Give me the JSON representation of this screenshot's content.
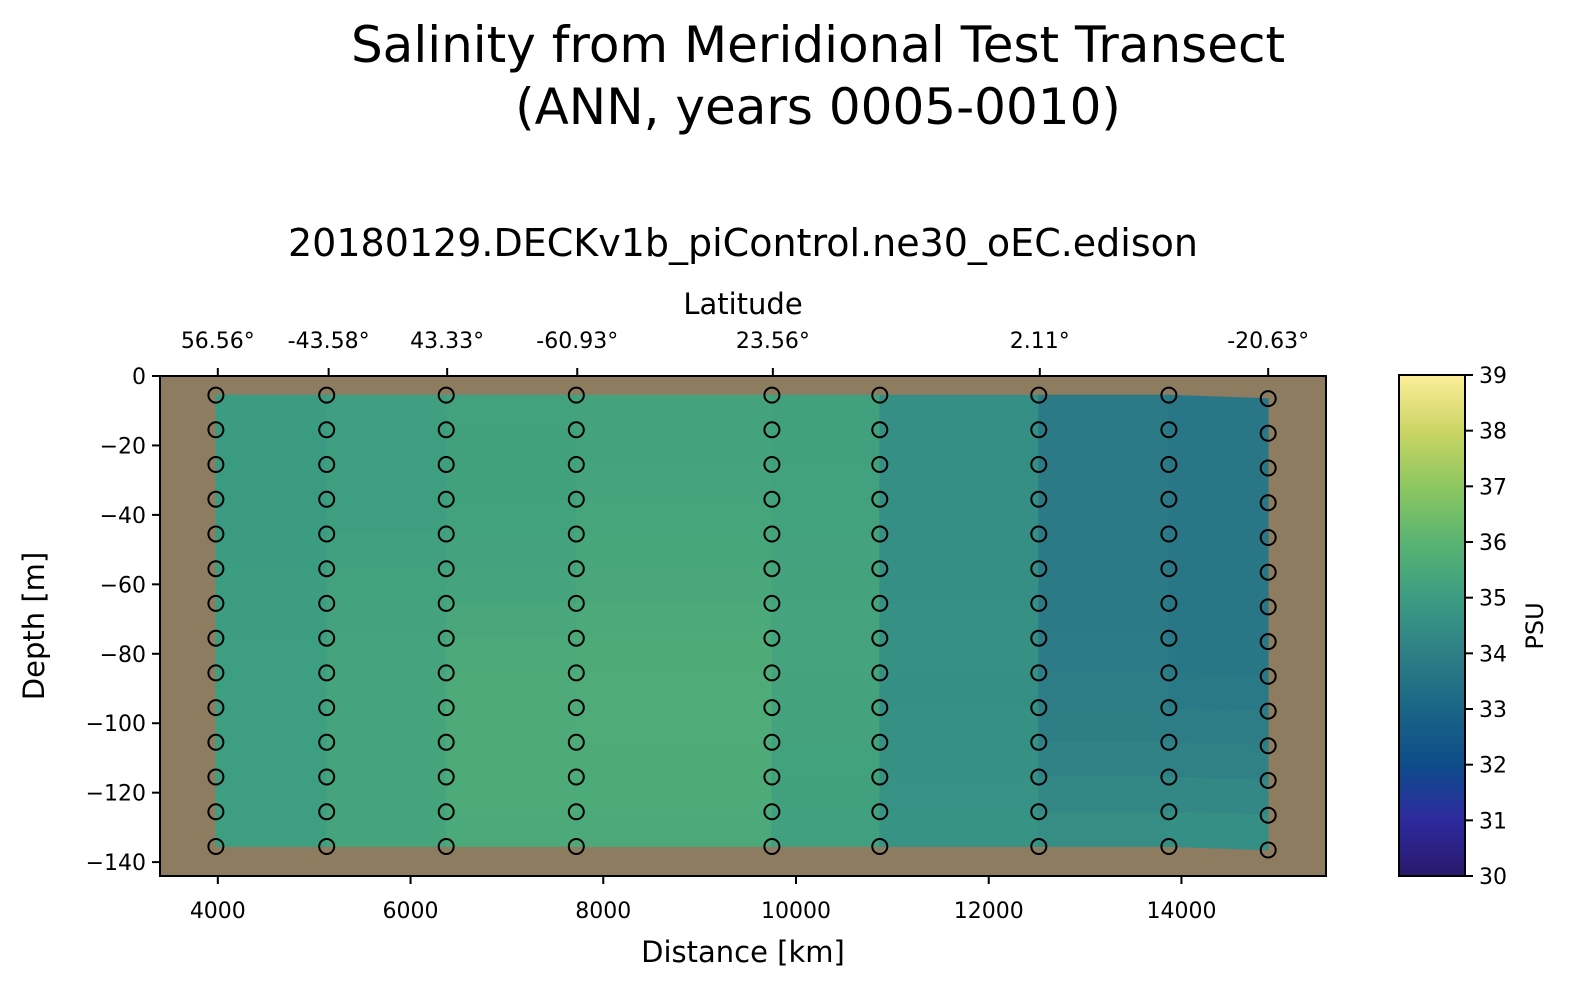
{
  "chart_data": {
    "type": "heatmap",
    "title_line1": "Salinity from Meridional Test Transect",
    "title_line2": "(ANN, years 0005-0010)",
    "subtitle": "20180129.DECKv1b_piControl.ne30_oEC.edison",
    "xlabel": "Distance [km]",
    "ylabel": "Depth [m]",
    "top_axis_label": "Latitude",
    "xlim": [
      3400,
      15500
    ],
    "ylim": [
      -144,
      0
    ],
    "x_ticks": [
      4000,
      6000,
      8000,
      10000,
      12000,
      14000
    ],
    "y_ticks": [
      0,
      -20,
      -40,
      -60,
      -80,
      -100,
      -120,
      -140
    ],
    "top_ticks": [
      {
        "x": 4000,
        "label": "56.56°"
      },
      {
        "x": 5150,
        "label": "-43.58°"
      },
      {
        "x": 6380,
        "label": "43.33°"
      },
      {
        "x": 7730,
        "label": "-60.93°"
      },
      {
        "x": 9760,
        "label": "23.56°"
      },
      {
        "x": 12530,
        "label": "2.11°"
      },
      {
        "x": 14900,
        "label": "-20.63°"
      }
    ],
    "station_distances_km": [
      3980,
      5130,
      6370,
      7720,
      9750,
      10870,
      12520,
      13870,
      14900
    ],
    "station_latitudes": [
      "56.56°",
      "-43.58°",
      "43.33°",
      "-60.93°",
      "23.56°",
      "",
      "2.11°",
      "",
      "-20.63°"
    ],
    "depths_m": [
      -5.5,
      -15.5,
      -25.5,
      -35.5,
      -45.5,
      -55.5,
      -65.5,
      -75.5,
      -85.5,
      -95.5,
      -105.5,
      -115.5,
      -125.5,
      -135.5
    ],
    "last_station_depth_offset_m": -1.0,
    "salinity_psu": [
      [
        34.9,
        34.9,
        34.8,
        34.8,
        34.8,
        34.9,
        34.9,
        34.9,
        35.0,
        35.0,
        35.0,
        35.0,
        35.0,
        35.0
      ],
      [
        35.1,
        35.1,
        35.1,
        35.1,
        35.1,
        35.2,
        35.2,
        35.2,
        35.2,
        35.2,
        35.2,
        35.2,
        35.2,
        35.2
      ],
      [
        35.2,
        35.1,
        35.1,
        35.1,
        35.1,
        35.2,
        35.3,
        35.4,
        35.5,
        35.5,
        35.5,
        35.5,
        35.5,
        35.5
      ],
      [
        35.3,
        35.3,
        35.3,
        35.3,
        35.4,
        35.4,
        35.5,
        35.6,
        35.7,
        35.7,
        35.7,
        35.7,
        35.6,
        35.6
      ],
      [
        35.3,
        35.3,
        35.3,
        35.4,
        35.4,
        35.5,
        35.5,
        35.6,
        35.6,
        35.6,
        35.6,
        35.5,
        35.5,
        35.4
      ],
      [
        35.1,
        35.1,
        35.1,
        35.1,
        35.1,
        35.1,
        35.1,
        35.1,
        35.0,
        35.0,
        35.0,
        34.9,
        34.9,
        34.9
      ],
      [
        34.0,
        34.0,
        34.0,
        34.0,
        34.0,
        34.0,
        34.0,
        34.1,
        34.1,
        34.1,
        34.2,
        34.3,
        34.4,
        34.5
      ],
      [
        33.6,
        33.6,
        33.6,
        33.6,
        33.6,
        33.6,
        33.6,
        33.6,
        33.6,
        33.7,
        33.8,
        34.1,
        34.4,
        34.6
      ],
      [
        33.7,
        33.7,
        33.7,
        33.7,
        33.7,
        33.7,
        33.7,
        33.7,
        33.8,
        33.9,
        34.1,
        34.3,
        34.5,
        34.7
      ]
    ],
    "land_color": "#8e7c61",
    "marker_style": "open-circle",
    "colorbar": {
      "label": "PSU",
      "min": 30,
      "max": 39,
      "ticks": [
        30,
        31,
        32,
        33,
        34,
        35,
        36,
        37,
        38,
        39
      ],
      "colormap": "haline",
      "stops": [
        {
          "v": 30.0,
          "c": "#2a186c"
        },
        {
          "v": 31.0,
          "c": "#2d2a9e"
        },
        {
          "v": 32.0,
          "c": "#0e4c8a"
        },
        {
          "v": 33.0,
          "c": "#1b6586"
        },
        {
          "v": 34.0,
          "c": "#2f7f86"
        },
        {
          "v": 35.0,
          "c": "#3b9c82"
        },
        {
          "v": 36.0,
          "c": "#5ab472"
        },
        {
          "v": 37.0,
          "c": "#8dc75f"
        },
        {
          "v": 38.0,
          "c": "#cbd565"
        },
        {
          "v": 39.0,
          "c": "#fdee99"
        }
      ]
    }
  }
}
